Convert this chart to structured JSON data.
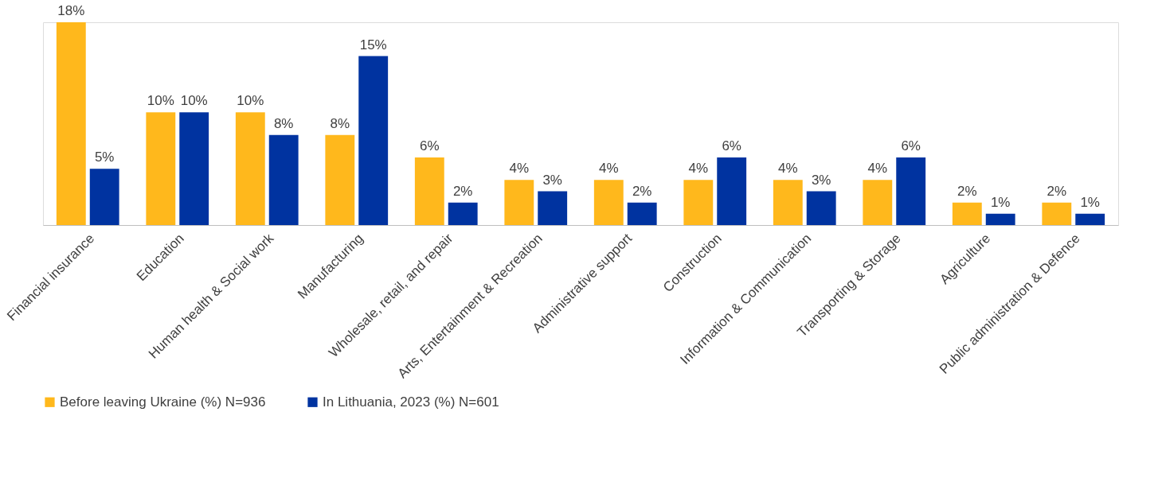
{
  "chart_data": {
    "type": "bar",
    "categories": [
      "Financial insurance",
      "Education",
      "Human health & Social work",
      "Manufacturing",
      "Wholesale, retail, and repair",
      "Arts, Entertainment & Recreation",
      "Administrative support",
      "Construction",
      "Information & Communication",
      "Transporting & Storage",
      "Agriculture",
      "Public administration & Defence"
    ],
    "series": [
      {
        "name": "Before leaving Ukraine (%) N=936",
        "color": "#ffb81c",
        "values": [
          18,
          10,
          10,
          8,
          6,
          4,
          4,
          4,
          4,
          4,
          2,
          2
        ],
        "value_labels": [
          "18%",
          "10%",
          "10%",
          "8%",
          "6%",
          "4%",
          "4%",
          "4%",
          "4%",
          "4%",
          "2%",
          "2%"
        ]
      },
      {
        "name": "In Lithuania, 2023 (%) N=601",
        "color": "#0033a0",
        "values": [
          5,
          10,
          8,
          15,
          2,
          3,
          2,
          6,
          3,
          6,
          1,
          1
        ],
        "value_labels": [
          "5%",
          "10%",
          "8%",
          "15%",
          "2%",
          "3%",
          "2%",
          "6%",
          "3%",
          "6%",
          "1%",
          "1%"
        ]
      }
    ],
    "legend": "bottom",
    "grid": false,
    "tick_labels": "x"
  }
}
